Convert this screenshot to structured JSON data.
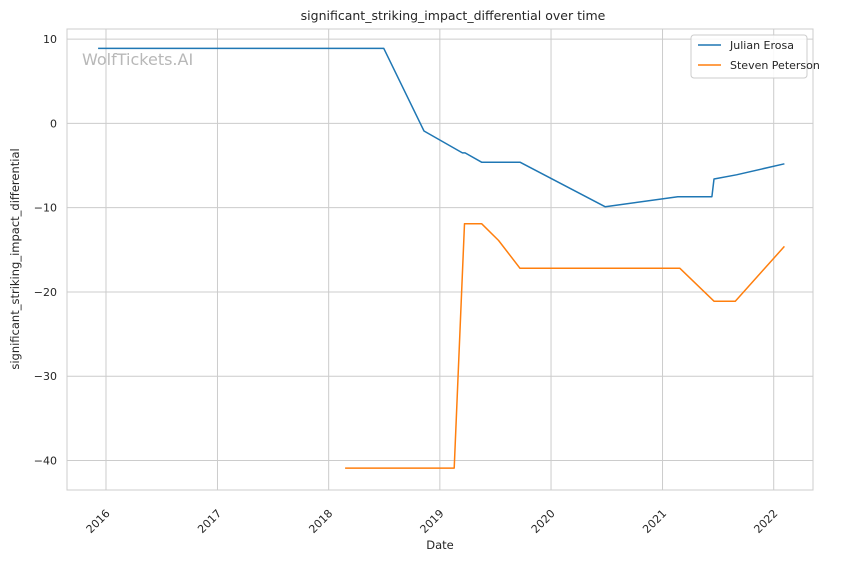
{
  "watermark": "WolfTickets.AI",
  "chart_data": {
    "type": "line",
    "title": "significant_striking_impact_differential over time",
    "xlabel": "Date",
    "ylabel": "significant_striking_impact_differential",
    "x_ticks": [
      "2016",
      "2017",
      "2018",
      "2019",
      "2020",
      "2021",
      "2022"
    ],
    "y_ticks": [
      "10",
      "0",
      "−10",
      "−20",
      "−30",
      "−40"
    ],
    "xlim": [
      "2015-08-26",
      "2022-05-10"
    ],
    "ylim": [
      -43.5,
      11.2
    ],
    "grid": true,
    "legend_position": "top-right",
    "series": [
      {
        "name": "Julian Erosa",
        "color": "#1f77b4",
        "points": [
          [
            "2015-12-06",
            8.9
          ],
          [
            "2018-07-01",
            8.9
          ],
          [
            "2018-11-10",
            -0.9
          ],
          [
            "2019-03-16",
            -3.5
          ],
          [
            "2019-03-25",
            -3.5
          ],
          [
            "2019-05-18",
            -4.6
          ],
          [
            "2019-09-21",
            -4.6
          ],
          [
            "2020-06-27",
            -9.9
          ],
          [
            "2021-02-20",
            -8.7
          ],
          [
            "2021-06-12",
            -8.7
          ],
          [
            "2021-06-19",
            -6.6
          ],
          [
            "2021-09-01",
            -6.1
          ],
          [
            "2022-02-05",
            -4.8
          ]
        ]
      },
      {
        "name": "Steven Peterson",
        "color": "#ff7f0e",
        "points": [
          [
            "2018-02-24",
            -40.9
          ],
          [
            "2019-02-17",
            -40.9
          ],
          [
            "2019-03-23",
            -11.9
          ],
          [
            "2019-05-18",
            -11.9
          ],
          [
            "2019-07-13",
            -13.9
          ],
          [
            "2019-09-21",
            -17.2
          ],
          [
            "2021-02-27",
            -17.2
          ],
          [
            "2021-06-19",
            -21.1
          ],
          [
            "2021-08-28",
            -21.1
          ],
          [
            "2022-02-05",
            -14.6
          ]
        ]
      }
    ]
  }
}
